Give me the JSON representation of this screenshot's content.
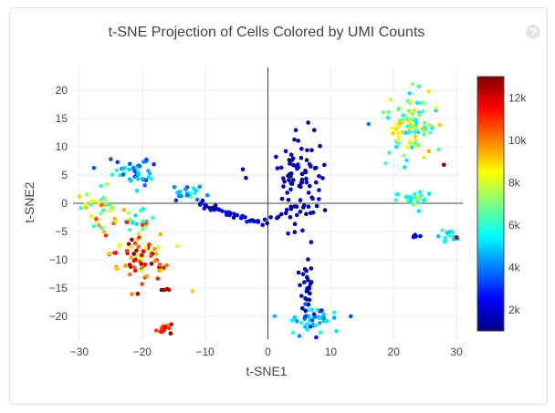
{
  "help": {
    "symbol": "?"
  },
  "chart_data": {
    "type": "scatter",
    "title": "t-SNE Projection of Cells Colored by UMI Counts",
    "xlabel": "t-SNE1",
    "ylabel": "t-SNE2",
    "xlim": [
      -31,
      31
    ],
    "ylim": [
      -24,
      24
    ],
    "xticks": [
      -30,
      -20,
      -10,
      0,
      10,
      20,
      30
    ],
    "xtick_labels": [
      "−30",
      "−20",
      "−10",
      "0",
      "10",
      "20",
      "30"
    ],
    "yticks": [
      20,
      15,
      10,
      5,
      0,
      -5,
      -10,
      -15,
      -20
    ],
    "ytick_labels": [
      "20",
      "15",
      "10",
      "5",
      "0",
      "−5",
      "−10",
      "−15",
      "−20"
    ],
    "colorbar": {
      "colorscale": "Jet",
      "min": 1000,
      "max": 13000,
      "ticks": [
        12000,
        10000,
        8000,
        6000,
        4000,
        2000
      ],
      "tick_labels": [
        "12k",
        "10k",
        "8k",
        "6k",
        "4k",
        "2k"
      ]
    },
    "marker_color": "umi_count",
    "grid": true,
    "clusters": [
      {
        "cx": -22,
        "cy": 5.5,
        "sx": 3,
        "sy": 1.5,
        "n": 45,
        "umi": [
          3000,
          6000
        ]
      },
      {
        "cx": -13,
        "cy": 2,
        "sx": 1.6,
        "sy": 0.9,
        "n": 22,
        "umi": [
          3000,
          6000
        ]
      },
      {
        "cx": -27,
        "cy": -1.5,
        "sx": 2,
        "sy": 2.5,
        "n": 38,
        "umi": [
          6000,
          11000
        ]
      },
      {
        "cx": -21,
        "cy": -3,
        "sx": 1.8,
        "sy": 1.5,
        "n": 18,
        "umi": [
          5000,
          8000
        ]
      },
      {
        "cx": -20,
        "cy": -9.5,
        "sx": 3,
        "sy": 3.2,
        "n": 70,
        "umi": [
          8000,
          13000
        ]
      },
      {
        "cx": -16.5,
        "cy": -22,
        "sx": 1,
        "sy": 0.8,
        "n": 16,
        "umi": [
          10000,
          13000
        ]
      },
      {
        "cx": -16,
        "cy": -15.2,
        "sx": 0.4,
        "sy": 0.3,
        "n": 4,
        "umi": [
          12000,
          13000
        ]
      },
      {
        "cx": 5,
        "cy": 4,
        "sx": 2.6,
        "sy": 5.5,
        "n": 85,
        "umi": [
          1000,
          2200
        ]
      },
      {
        "cx": 6,
        "cy": -14,
        "sx": 1.2,
        "sy": 3.5,
        "n": 26,
        "umi": [
          1000,
          2200
        ]
      },
      {
        "cx": 7,
        "cy": -20.5,
        "sx": 2.6,
        "sy": 1.3,
        "n": 45,
        "umi": [
          2500,
          6000
        ]
      },
      {
        "cx": 22.5,
        "cy": 13.5,
        "sx": 2.8,
        "sy": 4.2,
        "n": 95,
        "umi": [
          5000,
          9500
        ]
      },
      {
        "cx": 23,
        "cy": 1,
        "sx": 2.2,
        "sy": 1.2,
        "n": 28,
        "umi": [
          5000,
          8000
        ]
      },
      {
        "cx": 28.5,
        "cy": -5.5,
        "sx": 1.2,
        "sy": 0.8,
        "n": 14,
        "umi": [
          4500,
          6500
        ]
      },
      {
        "cx": 23.5,
        "cy": -5.8,
        "sx": 0.6,
        "sy": 0.3,
        "n": 5,
        "umi": [
          1500,
          2500
        ]
      }
    ],
    "paths": [
      {
        "from": [
          -11,
          0
        ],
        "to": [
          -1,
          -3.5
        ],
        "n": 40,
        "jitter": 0.6,
        "umi": [
          1000,
          3000
        ]
      },
      {
        "from": [
          -1,
          -3.5
        ],
        "to": [
          4,
          -1
        ],
        "n": 10,
        "jitter": 0.6,
        "umi": [
          1000,
          2000
        ]
      }
    ],
    "outliers": [
      {
        "x": -12,
        "y": -15.5,
        "umi": 9000
      },
      {
        "x": -25,
        "y": 7.8,
        "umi": 3500
      },
      {
        "x": 28,
        "y": 6.8,
        "umi": 13000
      },
      {
        "x": -4,
        "y": 6,
        "umi": 1800
      },
      {
        "x": -3.5,
        "y": 4.5,
        "umi": 1800
      },
      {
        "x": 30,
        "y": -6,
        "umi": 12500
      },
      {
        "x": 16,
        "y": 14,
        "umi": 4000
      }
    ]
  }
}
